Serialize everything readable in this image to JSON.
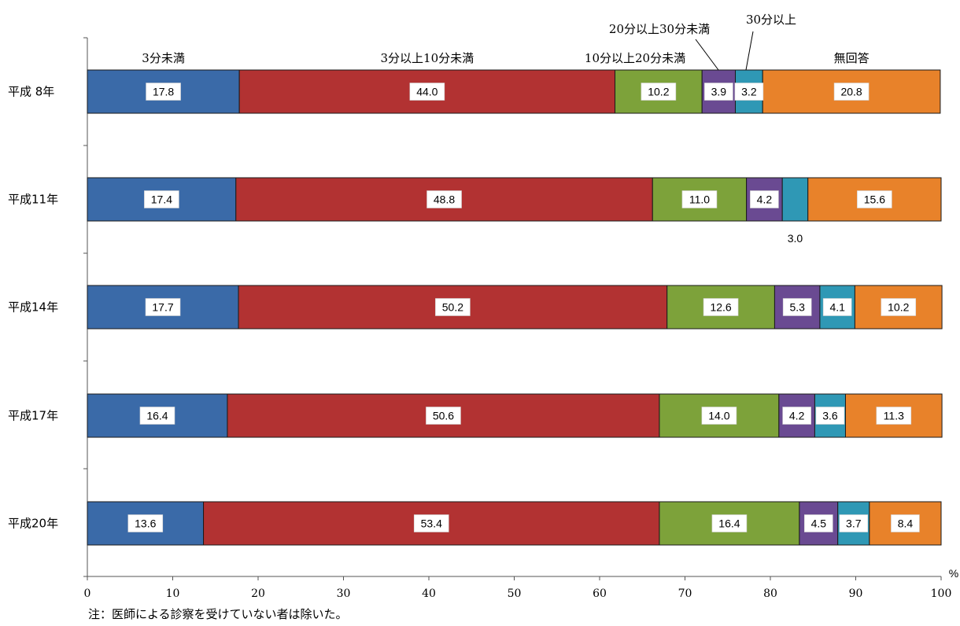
{
  "chart_data": {
    "type": "bar",
    "orientation": "horizontal",
    "stacked": true,
    "categories": [
      "平成 8年",
      "平成11年",
      "平成14年",
      "平成17年",
      "平成20年"
    ],
    "series": [
      {
        "name": "3分未満",
        "color": "#3a6aa8",
        "values": [
          17.8,
          17.4,
          17.7,
          16.4,
          13.6
        ]
      },
      {
        "name": "3分以上10分未満",
        "color": "#b23232",
        "values": [
          44.0,
          48.8,
          50.2,
          50.6,
          53.4
        ]
      },
      {
        "name": "10分以上20分未満",
        "color": "#7da23a",
        "values": [
          10.2,
          11.0,
          12.6,
          14.0,
          16.4
        ]
      },
      {
        "name": "20分以上30分未満",
        "color": "#6a4a92",
        "values": [
          3.9,
          4.2,
          5.3,
          4.2,
          4.5
        ]
      },
      {
        "name": "30分以上",
        "color": "#2f98b5",
        "values": [
          3.2,
          3.0,
          4.1,
          3.6,
          3.7
        ]
      },
      {
        "name": "無回答",
        "color": "#e8822a",
        "values": [
          20.8,
          15.6,
          10.2,
          11.3,
          8.4
        ]
      }
    ],
    "value_labels": [
      [
        "17.8",
        "44.0",
        "10.2",
        "3.9",
        "3.2",
        "20.8"
      ],
      [
        "17.4",
        "48.8",
        "11.0",
        "4.2",
        "3.0",
        "15.6"
      ],
      [
        "17.7",
        "50.2",
        "12.6",
        "5.3",
        "4.1",
        "10.2"
      ],
      [
        "16.4",
        "50.6",
        "14.0",
        "4.2",
        "3.6",
        "11.3"
      ],
      [
        "13.6",
        "53.4",
        "16.4",
        "4.5",
        "3.7",
        "8.4"
      ]
    ],
    "xlim": [
      0,
      100
    ],
    "xticks": [
      0,
      10,
      20,
      30,
      40,
      50,
      60,
      70,
      80,
      90,
      100
    ],
    "xticklabels": [
      "0",
      "10",
      "20",
      "30",
      "40",
      "50",
      "60",
      "70",
      "80",
      "90",
      "100"
    ],
    "xunit": "%",
    "grid": false,
    "legend": "labels above first bar"
  },
  "note": "注：医師による診察を受けていない者は除いた。"
}
